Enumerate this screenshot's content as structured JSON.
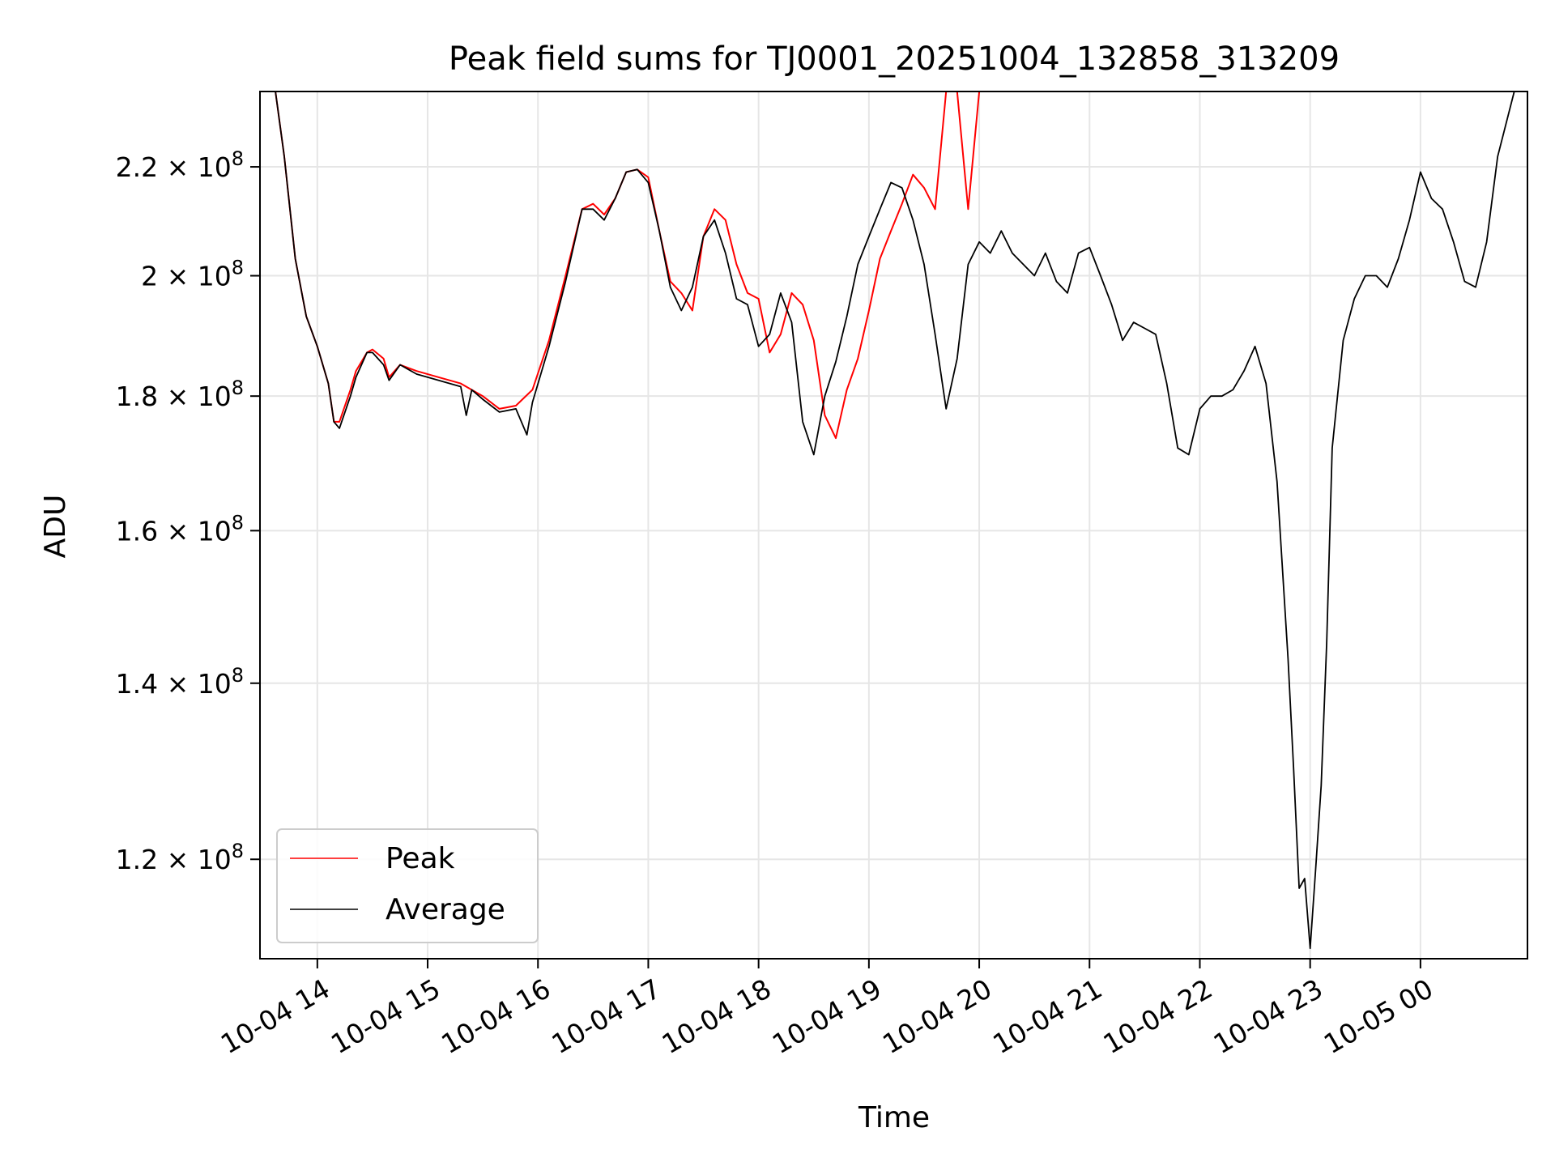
{
  "chart_data": {
    "type": "line",
    "title": "Peak field sums for TJ0001_20251004_132858_313209",
    "xlabel": "Time",
    "ylabel": "ADU",
    "yscale": "log",
    "ylim": [
      110000000,
      235000000
    ],
    "xlim": [
      13.48,
      24.97
    ],
    "grid": true,
    "legend_position": "lower-left",
    "x_ticks": [
      {
        "value": 14,
        "label": "10-04 14"
      },
      {
        "value": 15,
        "label": "10-04 15"
      },
      {
        "value": 16,
        "label": "10-04 16"
      },
      {
        "value": 17,
        "label": "10-04 17"
      },
      {
        "value": 18,
        "label": "10-04 18"
      },
      {
        "value": 19,
        "label": "10-04 19"
      },
      {
        "value": 20,
        "label": "10-04 20"
      },
      {
        "value": 21,
        "label": "10-04 21"
      },
      {
        "value": 22,
        "label": "10-04 22"
      },
      {
        "value": 23,
        "label": "10-04 23"
      },
      {
        "value": 24,
        "label": "10-05 00"
      }
    ],
    "y_ticks": [
      {
        "value": 120000000,
        "mantissa": "1.2",
        "exponent": "8"
      },
      {
        "value": 140000000,
        "mantissa": "1.4",
        "exponent": "8"
      },
      {
        "value": 160000000,
        "mantissa": "1.6",
        "exponent": "8"
      },
      {
        "value": 180000000,
        "mantissa": "1.8",
        "exponent": "8"
      },
      {
        "value": 200000000,
        "mantissa": "2",
        "exponent": "8"
      },
      {
        "value": 220000000,
        "mantissa": "2.2",
        "exponent": "8"
      }
    ],
    "series": [
      {
        "name": "Peak",
        "color": "#ff0000",
        "x": [
          13.62,
          13.7,
          13.8,
          13.9,
          14.0,
          14.1,
          14.15,
          14.2,
          14.3,
          14.35,
          14.45,
          14.5,
          14.6,
          14.65,
          14.75,
          14.9,
          15.1,
          15.3,
          15.5,
          15.65,
          15.8,
          15.95,
          16.1,
          16.25,
          16.4,
          16.5,
          16.6,
          16.7,
          16.8,
          16.9,
          17.0,
          17.1,
          17.2,
          17.3,
          17.4,
          17.5,
          17.6,
          17.7,
          17.8,
          17.9,
          18.0,
          18.1,
          18.2,
          18.3,
          18.4,
          18.5,
          18.6,
          18.7,
          18.8,
          18.9,
          19.0,
          19.1,
          19.2,
          19.3,
          19.4,
          19.5,
          19.6,
          19.7,
          19.8,
          19.9,
          20.0,
          20.1,
          20.2,
          20.3,
          20.4,
          20.5,
          20.6,
          20.7,
          20.8,
          20.9,
          21.0,
          21.1,
          21.2,
          21.3,
          21.4,
          21.5,
          21.6,
          21.7,
          21.8,
          21.9,
          22.0,
          22.1,
          22.2,
          22.3,
          22.4,
          22.5,
          22.6,
          22.7,
          22.8,
          22.9,
          22.95,
          23.0,
          23.05,
          23.1,
          23.15,
          23.2,
          23.3,
          23.4,
          23.5,
          23.6,
          23.7,
          23.8,
          23.9,
          24.0,
          24.1,
          24.2,
          24.3,
          24.4,
          24.5,
          24.6,
          24.7,
          24.85
        ],
        "y": [
          235000000,
          222000000,
          203000000,
          193000000,
          188000000,
          182000000,
          176000000,
          176000000,
          181000000,
          184000000,
          187000000,
          187500000,
          186000000,
          183000000,
          185000000,
          184000000,
          183000000,
          182000000,
          180000000,
          178000000,
          178500000,
          181000000,
          189000000,
          200000000,
          212000000,
          213000000,
          211000000,
          214000000,
          219000000,
          219500000,
          218000000,
          208000000,
          199000000,
          197000000,
          194000000,
          207000000,
          212000000,
          210000000,
          202000000,
          197000000,
          196000000,
          187000000,
          190000000,
          197000000,
          195000000,
          189000000,
          177000000,
          173500000,
          181000000,
          186000000,
          194000000,
          203000000,
          208000000,
          213000000,
          218500000,
          216000000,
          212000000,
          235000000,
          235000000,
          212000000,
          235000000,
          235000000,
          235000000,
          235000000,
          235000000,
          235000000,
          235000000,
          235000000,
          235000000,
          235000000,
          235000000,
          235000000,
          235000000,
          235000000,
          235000000,
          235000000,
          235000000,
          235000000,
          235000000,
          235000000,
          235000000,
          235000000,
          235000000,
          235000000,
          235000000,
          235000000,
          235000000,
          235000000,
          235000000,
          235000000,
          235000000,
          235000000,
          235000000,
          235000000,
          235000000,
          235000000,
          235000000,
          235000000,
          235000000,
          235000000,
          235000000,
          235000000,
          235000000,
          235000000,
          235000000,
          235000000,
          235000000,
          235000000,
          235000000,
          235000000,
          235000000,
          235000000
        ]
      },
      {
        "name": "Average",
        "color": "#000000",
        "x": [
          13.62,
          13.7,
          13.8,
          13.9,
          14.0,
          14.1,
          14.15,
          14.2,
          14.3,
          14.35,
          14.45,
          14.5,
          14.6,
          14.65,
          14.75,
          14.9,
          15.1,
          15.3,
          15.35,
          15.4,
          15.5,
          15.65,
          15.8,
          15.9,
          15.95,
          16.1,
          16.25,
          16.4,
          16.5,
          16.6,
          16.7,
          16.8,
          16.9,
          17.0,
          17.1,
          17.2,
          17.3,
          17.4,
          17.5,
          17.6,
          17.7,
          17.8,
          17.9,
          18.0,
          18.1,
          18.2,
          18.3,
          18.4,
          18.5,
          18.6,
          18.7,
          18.8,
          18.9,
          19.0,
          19.1,
          19.2,
          19.3,
          19.4,
          19.5,
          19.6,
          19.7,
          19.8,
          19.9,
          20.0,
          20.1,
          20.2,
          20.3,
          20.4,
          20.5,
          20.6,
          20.7,
          20.8,
          20.9,
          21.0,
          21.1,
          21.2,
          21.3,
          21.4,
          21.5,
          21.6,
          21.7,
          21.8,
          21.9,
          22.0,
          22.1,
          22.2,
          22.3,
          22.4,
          22.5,
          22.6,
          22.7,
          22.8,
          22.85,
          22.9,
          22.95,
          23.0,
          23.05,
          23.1,
          23.15,
          23.2,
          23.3,
          23.4,
          23.5,
          23.6,
          23.7,
          23.8,
          23.9,
          24.0,
          24.1,
          24.2,
          24.3,
          24.4,
          24.5,
          24.6,
          24.7,
          24.85
        ],
        "y": [
          235000000,
          222000000,
          203000000,
          193000000,
          188000000,
          182000000,
          176000000,
          175000000,
          180000000,
          183000000,
          187000000,
          187000000,
          185000000,
          182500000,
          185000000,
          183500000,
          182500000,
          181500000,
          177000000,
          181000000,
          179500000,
          177500000,
          178000000,
          174000000,
          179000000,
          188000000,
          199000000,
          212000000,
          212000000,
          210000000,
          214000000,
          219000000,
          219500000,
          217000000,
          208000000,
          198000000,
          194000000,
          198000000,
          207000000,
          210000000,
          204000000,
          196000000,
          195000000,
          188000000,
          190000000,
          197000000,
          192000000,
          176000000,
          171000000,
          180000000,
          185500000,
          193000000,
          202000000,
          207000000,
          212000000,
          217000000,
          216000000,
          210000000,
          202000000,
          190000000,
          178000000,
          186000000,
          202000000,
          206000000,
          204000000,
          208000000,
          204000000,
          202000000,
          200000000,
          204000000,
          199000000,
          197000000,
          204000000,
          205000000,
          200000000,
          195000000,
          189000000,
          192000000,
          191000000,
          190000000,
          182000000,
          172000000,
          171000000,
          178000000,
          180000000,
          180000000,
          181000000,
          184000000,
          188000000,
          182000000,
          167000000,
          143000000,
          130000000,
          117000000,
          118000000,
          111000000,
          119000000,
          128000000,
          145000000,
          172000000,
          189000000,
          196000000,
          200000000,
          200000000,
          198000000,
          203000000,
          210000000,
          219000000,
          214000000,
          212000000,
          206000000,
          199000000,
          198000000,
          206000000,
          222000000,
          235000000
        ]
      }
    ]
  }
}
